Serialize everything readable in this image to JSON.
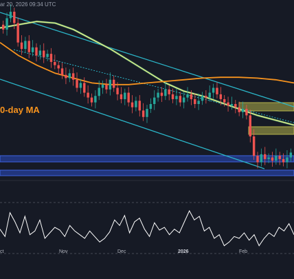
{
  "header": {
    "timestamp_text": "ar 20, 2026 09:34 UTC"
  },
  "colors": {
    "background": "#161a25",
    "candle_up": "#26a69a",
    "candle_down": "#ef5350",
    "channel": "#2bb6c9",
    "ma_200": "#f7931e",
    "ma_100": "#e0ef8a",
    "ma_100_shadow": "#3a8f6a",
    "supply_zone": "#b5b24a",
    "demand_zone": "#2b4cc4",
    "rsi_line": "#ffffff"
  },
  "chart_data": {
    "type": "line",
    "title": "",
    "series_labels": {
      "ma_200": "0-day MA"
    },
    "x_ticks": [
      {
        "label": "ct",
        "bold": false
      },
      {
        "label": "Nov",
        "bold": false
      },
      {
        "label": "Dec",
        "bold": false
      },
      {
        "label": "2026",
        "bold": true
      },
      {
        "label": "Feb",
        "bold": false
      }
    ],
    "price_candles_close": [
      0.86,
      0.93,
      0.97,
      0.9,
      0.78,
      0.74,
      0.79,
      0.72,
      0.75,
      0.7,
      0.73,
      0.69,
      0.71,
      0.66,
      0.64,
      0.62,
      0.58,
      0.56,
      0.59,
      0.55,
      0.5,
      0.53,
      0.47,
      0.44,
      0.41,
      0.45,
      0.5,
      0.52,
      0.49,
      0.55,
      0.5,
      0.46,
      0.43,
      0.47,
      0.41,
      0.38,
      0.42,
      0.36,
      0.32,
      0.37,
      0.4,
      0.44,
      0.47,
      0.45,
      0.49,
      0.46,
      0.43,
      0.45,
      0.41,
      0.44,
      0.46,
      0.43,
      0.4,
      0.42,
      0.45,
      0.44,
      0.47,
      0.5,
      0.46,
      0.43,
      0.41,
      0.39,
      0.4,
      0.38,
      0.35,
      0.37,
      0.33,
      0.2,
      0.08,
      0.04,
      0.09,
      0.06,
      0.07,
      0.05,
      0.08,
      0.06,
      0.04,
      0.07,
      0.1
    ],
    "ma_200_values": [
      0.78,
      0.7,
      0.64,
      0.59,
      0.56,
      0.53,
      0.52,
      0.52,
      0.53,
      0.54,
      0.55,
      0.56,
      0.565,
      0.565,
      0.56,
      0.55,
      0.53
    ],
    "ma_100_values": [
      0.87,
      0.89,
      0.91,
      0.9,
      0.86,
      0.8,
      0.74,
      0.67,
      0.6,
      0.53,
      0.48,
      0.45,
      0.41,
      0.37,
      0.33,
      0.3,
      0.27
    ],
    "rsi_values": [
      48,
      40,
      66,
      56,
      44,
      62,
      42,
      46,
      58,
      38,
      44,
      50,
      47,
      40,
      52,
      46,
      42,
      38,
      46,
      40,
      34,
      38,
      45,
      58,
      52,
      63,
      44,
      56,
      60,
      48,
      40,
      55,
      47,
      50,
      42,
      48,
      44,
      56,
      68,
      58,
      62,
      46,
      50,
      38,
      42,
      30,
      34,
      40,
      38,
      44,
      36,
      42,
      30,
      38,
      44,
      40,
      50,
      46,
      54,
      42
    ],
    "zones": {
      "supply": [
        "upper",
        "lower"
      ],
      "demand": [
        "upper",
        "lower"
      ]
    },
    "grid": false
  }
}
